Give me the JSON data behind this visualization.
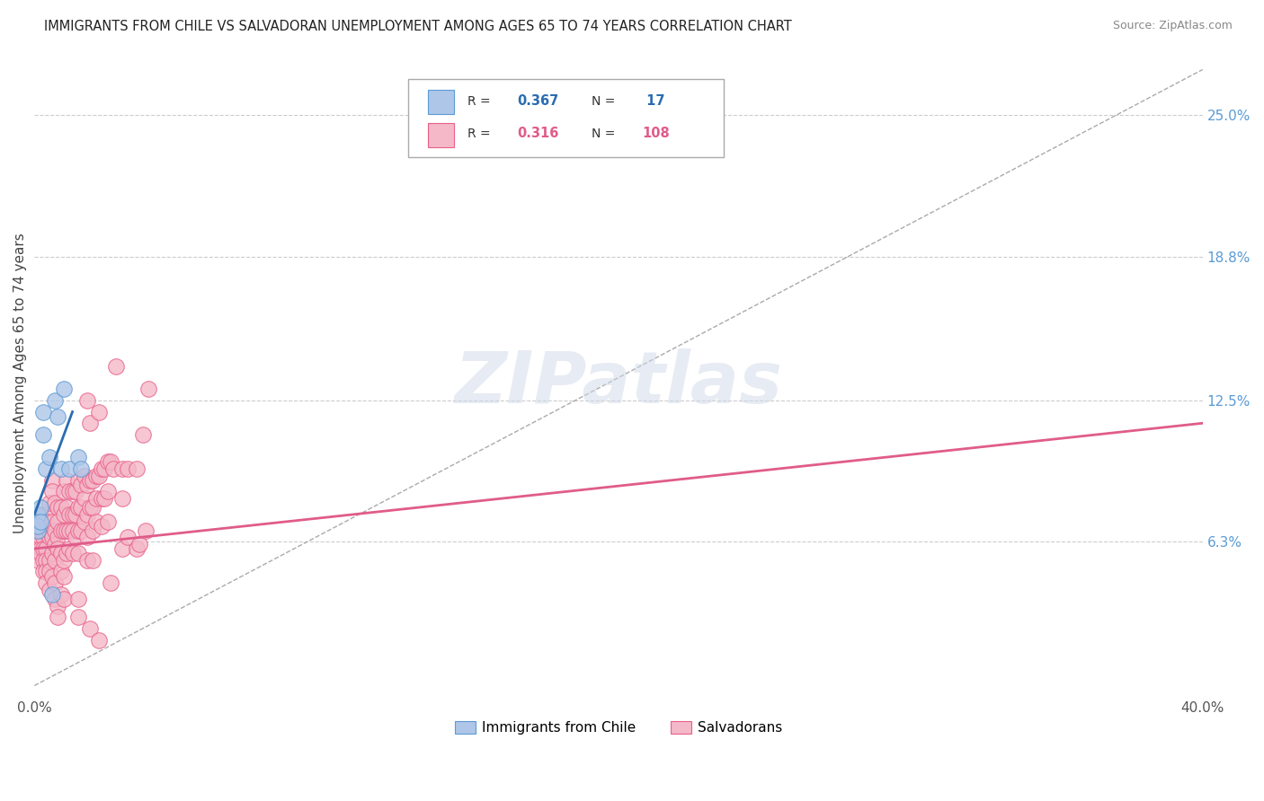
{
  "title": "IMMIGRANTS FROM CHILE VS SALVADORAN UNEMPLOYMENT AMONG AGES 65 TO 74 YEARS CORRELATION CHART",
  "source": "Source: ZipAtlas.com",
  "ylabel": "Unemployment Among Ages 65 to 74 years",
  "xlim": [
    0,
    0.4
  ],
  "ylim": [
    -0.005,
    0.27
  ],
  "xticks": [
    0.0,
    0.05,
    0.1,
    0.15,
    0.2,
    0.25,
    0.3,
    0.35,
    0.4
  ],
  "right_yticks": [
    0.063,
    0.125,
    0.188,
    0.25
  ],
  "right_yticklabels": [
    "6.3%",
    "12.5%",
    "18.8%",
    "25.0%"
  ],
  "legend_label1": "Immigrants from Chile",
  "legend_label2": "Salvadorans",
  "scatter_blue": [
    [
      0.001,
      0.075
    ],
    [
      0.001,
      0.068
    ],
    [
      0.001,
      0.07
    ],
    [
      0.002,
      0.078
    ],
    [
      0.002,
      0.072
    ],
    [
      0.003,
      0.12
    ],
    [
      0.003,
      0.11
    ],
    [
      0.004,
      0.095
    ],
    [
      0.005,
      0.1
    ],
    [
      0.007,
      0.125
    ],
    [
      0.008,
      0.118
    ],
    [
      0.009,
      0.095
    ],
    [
      0.01,
      0.13
    ],
    [
      0.012,
      0.095
    ],
    [
      0.015,
      0.1
    ],
    [
      0.016,
      0.095
    ],
    [
      0.006,
      0.04
    ]
  ],
  "scatter_pink": [
    [
      0.001,
      0.068
    ],
    [
      0.001,
      0.062
    ],
    [
      0.001,
      0.055
    ],
    [
      0.001,
      0.072
    ],
    [
      0.002,
      0.07
    ],
    [
      0.002,
      0.065
    ],
    [
      0.002,
      0.06
    ],
    [
      0.002,
      0.058
    ],
    [
      0.002,
      0.075
    ],
    [
      0.002,
      0.068
    ],
    [
      0.003,
      0.065
    ],
    [
      0.003,
      0.072
    ],
    [
      0.003,
      0.068
    ],
    [
      0.003,
      0.06
    ],
    [
      0.003,
      0.055
    ],
    [
      0.003,
      0.05
    ],
    [
      0.004,
      0.075
    ],
    [
      0.004,
      0.06
    ],
    [
      0.004,
      0.055
    ],
    [
      0.004,
      0.072
    ],
    [
      0.004,
      0.05
    ],
    [
      0.004,
      0.045
    ],
    [
      0.005,
      0.08
    ],
    [
      0.005,
      0.065
    ],
    [
      0.005,
      0.068
    ],
    [
      0.005,
      0.055
    ],
    [
      0.005,
      0.05
    ],
    [
      0.005,
      0.042
    ],
    [
      0.006,
      0.072
    ],
    [
      0.006,
      0.065
    ],
    [
      0.006,
      0.058
    ],
    [
      0.006,
      0.048
    ],
    [
      0.006,
      0.09
    ],
    [
      0.006,
      0.085
    ],
    [
      0.007,
      0.08
    ],
    [
      0.007,
      0.068
    ],
    [
      0.007,
      0.062
    ],
    [
      0.007,
      0.055
    ],
    [
      0.007,
      0.045
    ],
    [
      0.007,
      0.038
    ],
    [
      0.008,
      0.078
    ],
    [
      0.008,
      0.072
    ],
    [
      0.008,
      0.065
    ],
    [
      0.008,
      0.06
    ],
    [
      0.008,
      0.035
    ],
    [
      0.008,
      0.03
    ],
    [
      0.009,
      0.078
    ],
    [
      0.009,
      0.068
    ],
    [
      0.009,
      0.058
    ],
    [
      0.009,
      0.05
    ],
    [
      0.009,
      0.04
    ],
    [
      0.01,
      0.085
    ],
    [
      0.01,
      0.075
    ],
    [
      0.01,
      0.068
    ],
    [
      0.01,
      0.055
    ],
    [
      0.01,
      0.048
    ],
    [
      0.01,
      0.038
    ],
    [
      0.011,
      0.09
    ],
    [
      0.011,
      0.078
    ],
    [
      0.011,
      0.068
    ],
    [
      0.011,
      0.058
    ],
    [
      0.012,
      0.085
    ],
    [
      0.012,
      0.075
    ],
    [
      0.012,
      0.068
    ],
    [
      0.012,
      0.06
    ],
    [
      0.013,
      0.085
    ],
    [
      0.013,
      0.075
    ],
    [
      0.013,
      0.068
    ],
    [
      0.013,
      0.058
    ],
    [
      0.014,
      0.085
    ],
    [
      0.014,
      0.075
    ],
    [
      0.014,
      0.065
    ],
    [
      0.015,
      0.09
    ],
    [
      0.015,
      0.078
    ],
    [
      0.015,
      0.068
    ],
    [
      0.015,
      0.058
    ],
    [
      0.015,
      0.038
    ],
    [
      0.015,
      0.03
    ],
    [
      0.016,
      0.088
    ],
    [
      0.016,
      0.078
    ],
    [
      0.016,
      0.068
    ],
    [
      0.017,
      0.092
    ],
    [
      0.017,
      0.082
    ],
    [
      0.017,
      0.072
    ],
    [
      0.018,
      0.125
    ],
    [
      0.018,
      0.088
    ],
    [
      0.018,
      0.075
    ],
    [
      0.018,
      0.065
    ],
    [
      0.018,
      0.055
    ],
    [
      0.019,
      0.115
    ],
    [
      0.019,
      0.09
    ],
    [
      0.019,
      0.078
    ],
    [
      0.019,
      0.025
    ],
    [
      0.02,
      0.09
    ],
    [
      0.02,
      0.078
    ],
    [
      0.02,
      0.068
    ],
    [
      0.02,
      0.055
    ],
    [
      0.021,
      0.092
    ],
    [
      0.021,
      0.082
    ],
    [
      0.021,
      0.072
    ],
    [
      0.022,
      0.12
    ],
    [
      0.022,
      0.092
    ],
    [
      0.023,
      0.095
    ],
    [
      0.023,
      0.082
    ],
    [
      0.023,
      0.07
    ],
    [
      0.024,
      0.095
    ],
    [
      0.024,
      0.082
    ],
    [
      0.025,
      0.098
    ],
    [
      0.025,
      0.085
    ],
    [
      0.025,
      0.072
    ],
    [
      0.026,
      0.098
    ],
    [
      0.026,
      0.045
    ],
    [
      0.027,
      0.095
    ],
    [
      0.028,
      0.14
    ],
    [
      0.03,
      0.095
    ],
    [
      0.03,
      0.082
    ],
    [
      0.03,
      0.06
    ],
    [
      0.032,
      0.095
    ],
    [
      0.032,
      0.065
    ],
    [
      0.035,
      0.095
    ],
    [
      0.035,
      0.06
    ],
    [
      0.036,
      0.062
    ],
    [
      0.037,
      0.11
    ],
    [
      0.038,
      0.068
    ],
    [
      0.039,
      0.13
    ],
    [
      0.022,
      0.02
    ]
  ],
  "blue_line_x": [
    0.0,
    0.013
  ],
  "blue_line_y": [
    0.075,
    0.12
  ],
  "pink_line_x": [
    0.0,
    0.4
  ],
  "pink_line_y": [
    0.06,
    0.115
  ],
  "ref_line_x": [
    0.0,
    0.4
  ],
  "ref_line_y": [
    0.0,
    0.27
  ],
  "background_color": "#ffffff",
  "grid_color": "#cccccc",
  "blue_scatter_color": "#aec6e8",
  "blue_scatter_edge": "#5b9bd5",
  "pink_scatter_color": "#f4b8c8",
  "pink_scatter_edge": "#e8608a",
  "blue_line_color": "#2b6cb0",
  "pink_line_color": "#e05c8a",
  "ref_line_color": "#aaaaaa",
  "title_color": "#222222",
  "source_color": "#888888",
  "right_axis_color": "#5b9bd5",
  "watermark": "ZIPatlas",
  "watermark_color": "#d0d8e8"
}
